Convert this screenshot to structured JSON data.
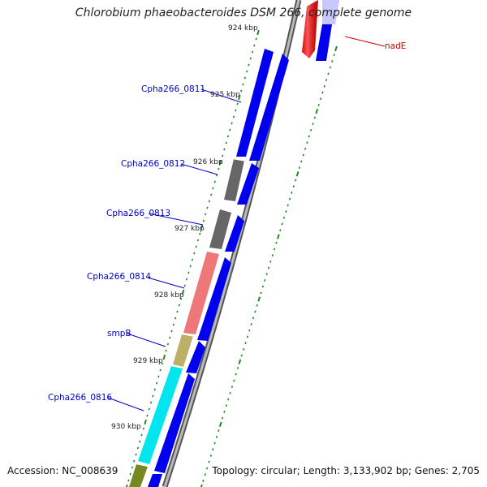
{
  "title": "Chlorobium phaeobacteroides DSM 266, complete genome",
  "footer": {
    "accession": "Accession: NC_008639",
    "summary": "Topology: circular; Length: 3,133,902 bp; Genes: 2,705"
  },
  "ticks": [
    {
      "kbp": 924,
      "label": "924 kbp"
    },
    {
      "kbp": 925,
      "label": "925 kbp"
    },
    {
      "kbp": 926,
      "label": "926 kbp"
    },
    {
      "kbp": 927,
      "label": "927 kbp"
    },
    {
      "kbp": 928,
      "label": "928 kbp"
    },
    {
      "kbp": 929,
      "label": "929 kbp"
    },
    {
      "kbp": 930,
      "label": "930 kbp"
    }
  ],
  "genes": [
    {
      "label": "Cpha266_0811",
      "color": "#0000ee"
    },
    {
      "label": "Cpha266_0812",
      "color": "#666666"
    },
    {
      "label": "Cpha266_0813",
      "color": "#666666"
    },
    {
      "label": "Cpha266_0814",
      "color": "#ee7777"
    },
    {
      "label": "smpB",
      "color": "#bbb066"
    },
    {
      "label": "Cpha266_0816",
      "color": "#00e5ee"
    },
    {
      "label": "nadE",
      "color": "#ee0000"
    }
  ],
  "colors": {
    "label": "#0000bb",
    "nadE_label": "#cc0000",
    "blue_feature": "#0000ee",
    "backbone": "#888888",
    "tick": "#228822",
    "olive": "#778822"
  }
}
